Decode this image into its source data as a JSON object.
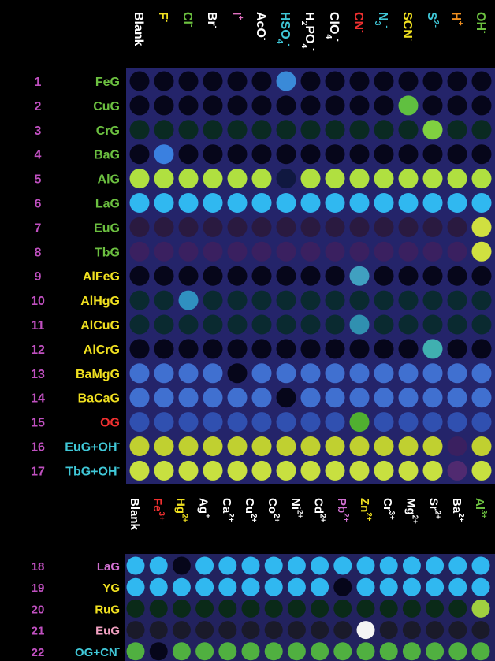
{
  "top": {
    "columns": [
      {
        "base": "Blank",
        "color": "#ffffff"
      },
      {
        "base": "F",
        "sup": "-",
        "color": "#f0e020"
      },
      {
        "base": "Cl",
        "sup": "-",
        "color": "#6cc040"
      },
      {
        "base": "Br",
        "sup": "-",
        "color": "#ffffff"
      },
      {
        "base": "I",
        "sup": "+",
        "color": "#e070c0"
      },
      {
        "base": "AcO",
        "sup": "-",
        "color": "#ffffff"
      },
      {
        "base": "HSO",
        "sub": "4",
        "sup": "-",
        "color": "#40c8d8"
      },
      {
        "base": "H",
        "sub": "2",
        "base2": "PO",
        "sub2": "4",
        "sup": "-",
        "color": "#ffffff"
      },
      {
        "base": "ClO",
        "sub": "4",
        "sup": "-",
        "color": "#ffffff"
      },
      {
        "base": "CN",
        "sup": "-",
        "color": "#f03030"
      },
      {
        "base": "N",
        "sub": "3",
        "sup": "-",
        "color": "#40c8d8"
      },
      {
        "base": "SCN",
        "sup": "-",
        "color": "#f0e020"
      },
      {
        "base": "S",
        "sup": "2-",
        "color": "#40c8d8"
      },
      {
        "base": "H",
        "sup": "+",
        "color": "#f09020"
      },
      {
        "base": "OH",
        "sup": "-",
        "color": "#6cc040"
      }
    ],
    "rows": [
      {
        "number": "1",
        "label": "FeG",
        "color": "#6cc040"
      },
      {
        "number": "2",
        "label": "CuG",
        "color": "#6cc040"
      },
      {
        "number": "3",
        "label": "CrG",
        "color": "#6cc040"
      },
      {
        "number": "4",
        "label": "BaG",
        "color": "#6cc040"
      },
      {
        "number": "5",
        "label": "AlG",
        "color": "#6cc040"
      },
      {
        "number": "6",
        "label": "LaG",
        "color": "#6cc040"
      },
      {
        "number": "7",
        "label": "EuG",
        "color": "#6cc040"
      },
      {
        "number": "8",
        "label": "TbG",
        "color": "#6cc040"
      },
      {
        "number": "9",
        "label": "AlFeG",
        "color": "#f0e020"
      },
      {
        "number": "10",
        "label": "AlHgG",
        "color": "#f0e020"
      },
      {
        "number": "11",
        "label": "AlCuG",
        "color": "#f0e020"
      },
      {
        "number": "12",
        "label": "AlCrG",
        "color": "#f0e020"
      },
      {
        "number": "13",
        "label": "BaMgG",
        "color": "#f0e020"
      },
      {
        "number": "14",
        "label": "BaCaG",
        "color": "#f0e020"
      },
      {
        "number": "15",
        "label": "OG",
        "color": "#f03030"
      },
      {
        "number": "16",
        "label": "EuG+OH",
        "sup": "-",
        "color": "#40c8d8"
      },
      {
        "number": "17",
        "label": "TbG+OH",
        "sup": "-",
        "color": "#40c8d8"
      }
    ]
  },
  "bottom": {
    "columns": [
      {
        "base": "Blank",
        "color": "#ffffff"
      },
      {
        "base": "Fe",
        "sup": "3+",
        "color": "#f03030"
      },
      {
        "base": "Hg",
        "sup": "2+",
        "color": "#f0e020"
      },
      {
        "base": "Ag",
        "sup": "+",
        "color": "#ffffff"
      },
      {
        "base": "Ca",
        "sup": "2+",
        "color": "#ffffff"
      },
      {
        "base": "Cu",
        "sup": "2+",
        "color": "#ffffff"
      },
      {
        "base": "Co",
        "sup": "2+",
        "color": "#ffffff"
      },
      {
        "base": "Ni",
        "sup": "2+",
        "color": "#ffffff"
      },
      {
        "base": "Cd",
        "sup": "2+",
        "color": "#ffffff"
      },
      {
        "base": "Pb",
        "sup": "2+",
        "color": "#d070d0"
      },
      {
        "base": "Zn",
        "sup": "2+",
        "color": "#f0e020"
      },
      {
        "base": "Cr",
        "sup": "3+",
        "color": "#ffffff"
      },
      {
        "base": "Mg",
        "sup": "2+",
        "color": "#ffffff"
      },
      {
        "base": "Sr",
        "sup": "2+",
        "color": "#ffffff"
      },
      {
        "base": "Ba",
        "sup": "2+",
        "color": "#ffffff"
      },
      {
        "base": "Al",
        "sup": "3+",
        "color": "#6cc040"
      }
    ],
    "rows": [
      {
        "number": "18",
        "label": "LaG",
        "color": "#d070d0"
      },
      {
        "number": "19",
        "label": "YG",
        "color": "#f0e020"
      },
      {
        "number": "20",
        "label": "RuG",
        "color": "#f0e020"
      },
      {
        "number": "21",
        "label": "EuG",
        "color": "#f0a0c0"
      },
      {
        "number": "22",
        "label": "OG+CN",
        "sup": "-",
        "color": "#40c8d8"
      }
    ]
  }
}
